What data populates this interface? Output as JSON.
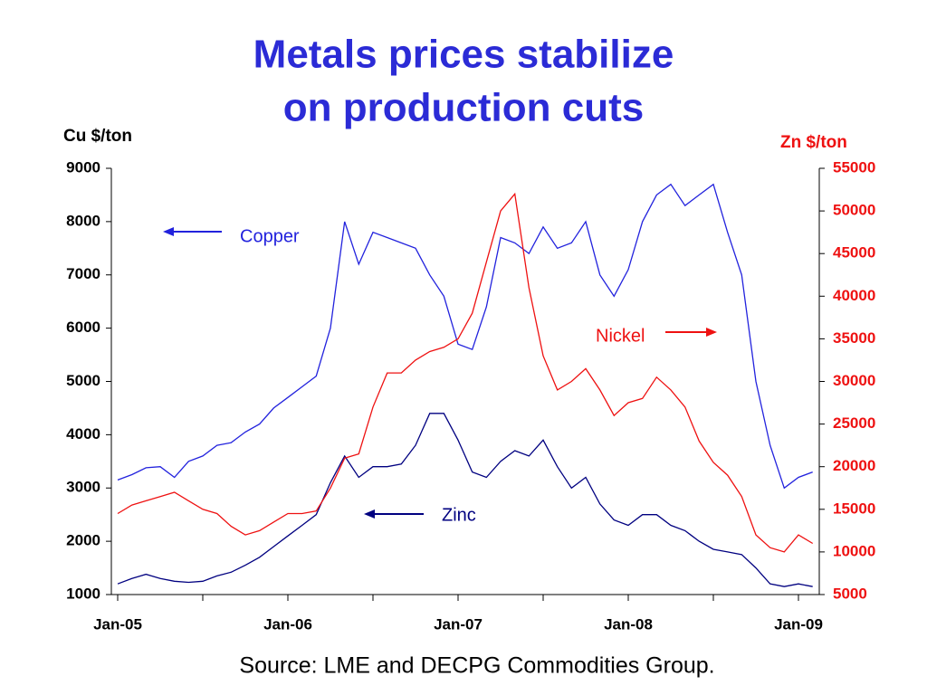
{
  "chart_data": {
    "type": "line",
    "title": [
      "Metals prices stabilize",
      "on production cuts"
    ],
    "y_label": "Cu $/ton",
    "y2_label": "Zn $/ton",
    "source": "Source: LME and DECPG Commodities Group.",
    "annotations": [
      {
        "text": "Copper",
        "series": 0
      },
      {
        "text": "Nickel",
        "series": 2
      },
      {
        "text": "Zinc",
        "series": 1
      }
    ],
    "x": [
      "2005-01",
      "2005-02",
      "2005-03",
      "2005-04",
      "2005-05",
      "2005-06",
      "2005-07",
      "2005-08",
      "2005-09",
      "2005-10",
      "2005-11",
      "2005-12",
      "2006-01",
      "2006-02",
      "2006-03",
      "2006-04",
      "2006-05",
      "2006-06",
      "2006-07",
      "2006-08",
      "2006-09",
      "2006-10",
      "2006-11",
      "2006-12",
      "2007-01",
      "2007-02",
      "2007-03",
      "2007-04",
      "2007-05",
      "2007-06",
      "2007-07",
      "2007-08",
      "2007-09",
      "2007-10",
      "2007-11",
      "2007-12",
      "2008-01",
      "2008-02",
      "2008-03",
      "2008-04",
      "2008-05",
      "2008-06",
      "2008-07",
      "2008-08",
      "2008-09",
      "2008-10",
      "2008-11",
      "2008-12",
      "2009-01",
      "2009-02"
    ],
    "xticks": [
      {
        "value": "2005-01",
        "label": "Jan-05"
      },
      {
        "value": "2006-01",
        "label": "Jan-06"
      },
      {
        "value": "2007-01",
        "label": "Jan-07"
      },
      {
        "value": "2008-01",
        "label": "Jan-08"
      },
      {
        "value": "2009-01",
        "label": "Jan-09"
      }
    ],
    "xminorticks": [
      "2005-07",
      "2006-07",
      "2007-07",
      "2008-07"
    ],
    "ylim": [
      1000,
      9000
    ],
    "yticks": [
      1000,
      2000,
      3000,
      4000,
      5000,
      6000,
      7000,
      8000,
      9000
    ],
    "y2lim": [
      5000,
      55000
    ],
    "y2ticks": [
      5000,
      10000,
      15000,
      20000,
      25000,
      30000,
      35000,
      40000,
      45000,
      50000,
      55000
    ],
    "series": [
      {
        "name": "Copper",
        "color": "#2222dd",
        "values": [
          3150,
          3250,
          3380,
          3400,
          3200,
          3500,
          3600,
          3800,
          3850,
          4050,
          4200,
          4500,
          4700,
          4900,
          5100,
          6000,
          8000,
          7200,
          7800,
          7700,
          7600,
          7500,
          7000,
          6600,
          5700,
          5600,
          6400,
          7700,
          7600,
          7400,
          7900,
          7500,
          7600,
          8000,
          7000,
          6600,
          7100,
          8000,
          8500,
          8700,
          8300,
          8500,
          8700,
          7800,
          7000,
          5000,
          3800,
          3000,
          3200,
          3300
        ]
      },
      {
        "name": "Zinc",
        "color": "#000080",
        "values": [
          1200,
          1300,
          1380,
          1300,
          1250,
          1230,
          1250,
          1350,
          1420,
          1550,
          1700,
          1900,
          2100,
          2300,
          2500,
          3100,
          3600,
          3200,
          3400,
          3400,
          3450,
          3800,
          4400,
          4400,
          3900,
          3300,
          3200,
          3500,
          3700,
          3600,
          3900,
          3400,
          3000,
          3200,
          2700,
          2400,
          2300,
          2500,
          2500,
          2300,
          2200,
          2000,
          1850,
          1800,
          1750,
          1500,
          1200,
          1150,
          1200,
          1150
        ]
      },
      {
        "name": "Nickel",
        "color": "#ee1111",
        "axis": "y2",
        "values": [
          14500,
          15500,
          16000,
          16500,
          17000,
          16000,
          15000,
          14500,
          13000,
          12000,
          12500,
          13500,
          14500,
          14500,
          14800,
          17500,
          21000,
          21500,
          27000,
          31000,
          31000,
          32500,
          33500,
          34000,
          35000,
          38000,
          44000,
          50000,
          52000,
          41000,
          33000,
          29000,
          30000,
          31500,
          29000,
          26000,
          27500,
          28000,
          30500,
          29000,
          27000,
          23000,
          20500,
          19000,
          16500,
          12000,
          10500,
          10000,
          12000,
          11000
        ]
      }
    ]
  }
}
